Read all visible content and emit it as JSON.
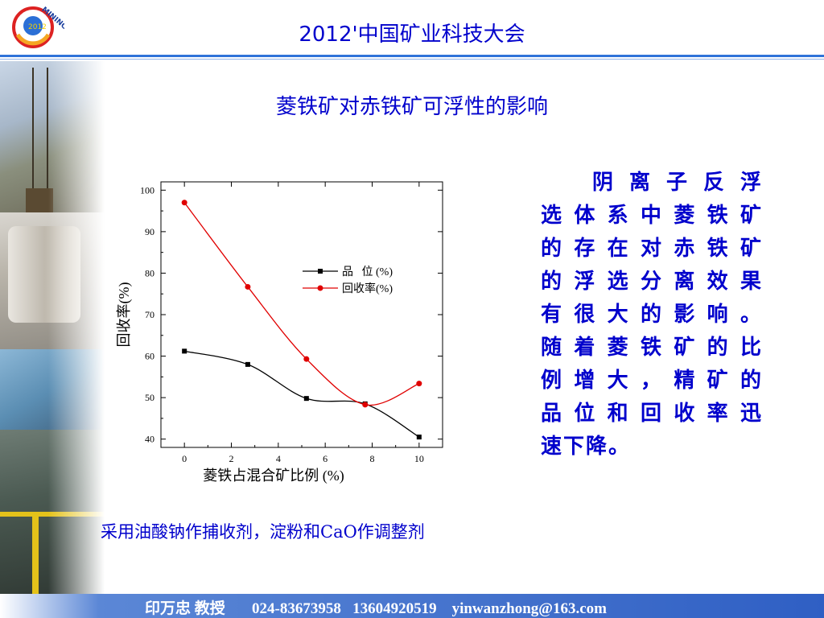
{
  "header": {
    "conference_title": "2012'中国矿业科技大会",
    "logo_text": "MINING",
    "logo_year": "2012"
  },
  "slide": {
    "title": "菱铁矿对赤铁矿可浮性的影响",
    "description": "阴离子反浮选体系中菱铁矿的存在对赤铁矿的浮选分离效果有很大的影响。随着菱铁矿的比例增大，精矿的品位和回收率迅速下降。",
    "description_lines": [
      "阴离子反浮",
      "选体系中菱铁矿",
      "的存在对赤铁矿",
      "的浮选分离效果",
      "有很大的影响。",
      "随着菱铁矿的比",
      "例增大，精矿的",
      "品位和回收率迅",
      "速下降。"
    ],
    "reagents_note": "采用油酸钠作捕收剂，淀粉和CaO作调整剂"
  },
  "footer": {
    "contact": "印万忠 教授       024-83673958   13604920519    yinwanzhong@163.com"
  },
  "colors": {
    "title_blue": "#0000cc",
    "rule_blue": "#2f73d9",
    "series_grade": "#000000",
    "series_recovery": "#e00000"
  },
  "chart_data": {
    "type": "line",
    "xlabel": "菱铁占混合矿比例  (%)",
    "ylabel": "回收率(%)",
    "xlim": [
      -1,
      11
    ],
    "ylim": [
      38,
      102
    ],
    "x_ticks": [
      0,
      2,
      4,
      6,
      8,
      10
    ],
    "y_ticks": [
      40,
      50,
      60,
      70,
      80,
      90,
      100
    ],
    "legend_position": "center-right",
    "series": [
      {
        "name": "品   位 (%)",
        "marker": "square",
        "color": "#000000",
        "x": [
          0,
          2.7,
          5.2,
          7.7,
          10
        ],
        "y": [
          61.2,
          58,
          49.8,
          48.5,
          40.5
        ]
      },
      {
        "name": "回收率(%)",
        "marker": "circle",
        "color": "#e00000",
        "x": [
          0,
          2.7,
          5.2,
          7.7,
          10
        ],
        "y": [
          97,
          76.7,
          59.3,
          48.3,
          53.4
        ]
      }
    ]
  }
}
